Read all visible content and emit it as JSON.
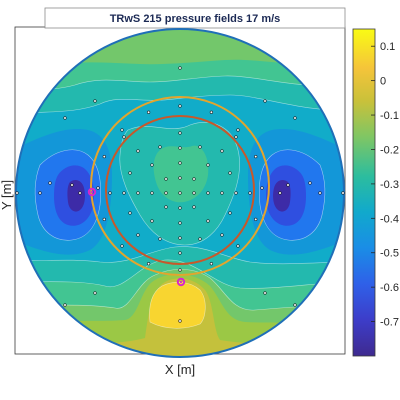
{
  "chart_data": {
    "type": "contour",
    "title": "TRwS 215  pressure fields 17 m/s",
    "xlabel": "X [m]",
    "ylabel": "Y [m]",
    "colorbar": {
      "colormap": "parula",
      "ticks": [
        "0.1",
        "0",
        "-0.1",
        "-0.2",
        "-0.3",
        "-0.4",
        "-0.5",
        "-0.6",
        "-0.7"
      ],
      "range": [
        -0.8,
        0.15
      ]
    },
    "colors": {
      "c_low": "#3d2ba7",
      "c_m60": "#2f4fe0",
      "c_m50": "#2177ee",
      "c_m42": "#1397d8",
      "c_m35": "#11acc9",
      "c_m29": "#23b9ae",
      "c_m22": "#42c592",
      "c_m15": "#73c76b",
      "c_m10": "#9bc845",
      "c_m05": "#c4c13c",
      "c_high": "#f8d530",
      "outer_circle": "#1f6fb8",
      "ring_orange": "#e3a52d",
      "ring_red": "#c8582a",
      "marker_magenta": "#d926c9"
    }
  }
}
